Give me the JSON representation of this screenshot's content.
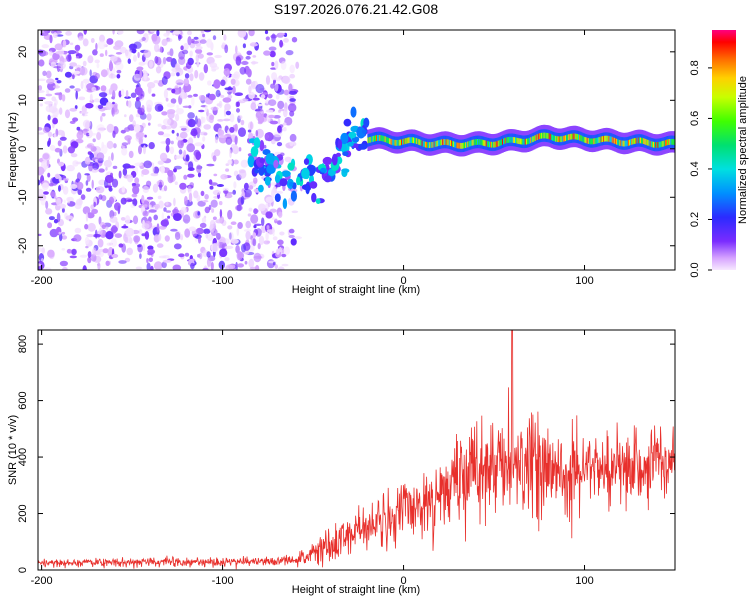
{
  "figure": {
    "title": "S197.2026.076.21.42.G08"
  },
  "chart_data": [
    {
      "type": "heatmap",
      "title": "",
      "xlabel": "Height of straight line (km)",
      "ylabel": "Frequency (Hz)",
      "xlim": [
        -202,
        150
      ],
      "ylim": [
        -25,
        24.5
      ],
      "xticks": [
        -200,
        -100,
        0,
        100
      ],
      "yticks": [
        20,
        10,
        0,
        -10,
        -20
      ],
      "xticklabels": [
        "-200",
        "-100",
        "0",
        "100"
      ],
      "yticklabels": [
        "20",
        "10",
        "0",
        "-10",
        "-20"
      ],
      "colorbar": {
        "label": "Normalized spectral amplitude",
        "range": [
          0.0,
          0.95
        ],
        "ticks": [
          0.0,
          0.2,
          0.4,
          0.6,
          0.8
        ],
        "ticklabels": [
          "0.0",
          "0.2",
          "0.4",
          "0.6",
          "0.8"
        ]
      },
      "regions": {
        "noise_band": {
          "x": [
            -202,
            -60
          ],
          "freq_range": [
            -25,
            24.5
          ]
        },
        "transition": {
          "x": [
            -85,
            -20
          ],
          "freq_track": [
            [
              -85,
              -3
            ],
            [
              -75,
              -4
            ],
            [
              -60,
              -6
            ],
            [
              -48,
              -7
            ],
            [
              -40,
              -4
            ],
            [
              -32,
              1
            ],
            [
              -25,
              4
            ],
            [
              -18,
              2
            ]
          ]
        },
        "signal_track": {
          "x": [
            -20,
            150
          ],
          "freq_track": [
            [
              -20,
              2
            ],
            [
              0,
              1.5
            ],
            [
              20,
              1
            ],
            [
              40,
              1
            ],
            [
              60,
              1.5
            ],
            [
              80,
              2.5
            ],
            [
              100,
              2
            ],
            [
              120,
              1.5
            ],
            [
              150,
              1
            ]
          ]
        }
      }
    },
    {
      "type": "line",
      "title": "",
      "xlabel": "Height of straight line (km)",
      "ylabel": "SNR (10 * v/v)",
      "xlim": [
        -202,
        150
      ],
      "ylim": [
        0,
        850
      ],
      "xticks": [
        -200,
        -100,
        0,
        100
      ],
      "yticks": [
        0,
        200,
        400,
        600,
        800
      ],
      "xticklabels": [
        "-200",
        "-100",
        "0",
        "100"
      ],
      "yticklabels": [
        "0",
        "200",
        "400",
        "600",
        "800"
      ],
      "series": [
        {
          "name": "SNR",
          "color": "#e8302c",
          "envelope": {
            "x": [
              -202,
              -140,
              -70,
              -60,
              -50,
              -40,
              -30,
              -20,
              -10,
              0,
              10,
              20,
              30,
              40,
              50,
              60,
              70,
              80,
              90,
              100,
              110,
              120,
              130,
              140,
              150
            ],
            "mean": [
              25,
              28,
              30,
              35,
              60,
              90,
              120,
              150,
              170,
              200,
              240,
              280,
              320,
              350,
              370,
              380,
              380,
              370,
              360,
              360,
              350,
              360,
              360,
              380,
              390
            ],
            "spread": [
              12,
              14,
              15,
              20,
              40,
              60,
              70,
              80,
              90,
              100,
              110,
              120,
              130,
              150,
              160,
              170,
              160,
              150,
              140,
              130,
              130,
              120,
              120,
              110,
              100
            ]
          },
          "peak": {
            "x": 60,
            "y": 850
          }
        }
      ]
    }
  ]
}
